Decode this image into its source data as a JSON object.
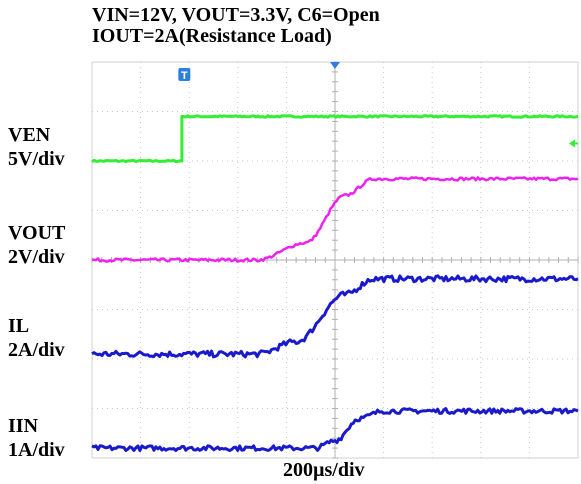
{
  "header": {
    "line1": "VIN=12V,   VOUT=3.3V,  C6=Open",
    "line2": "IOUT=2A(Resistance Load)"
  },
  "channels": [
    {
      "name": "VEN",
      "scale": "5V/div"
    },
    {
      "name": "VOUT",
      "scale": "2V/div"
    },
    {
      "name": "IL",
      "scale": "2A/div"
    },
    {
      "name": "IIN",
      "scale": "1A/div"
    }
  ],
  "xaxis": {
    "scale": "200µs/div"
  },
  "trigger_marker": "T",
  "colors": {
    "grid": "#c8c8c8",
    "frame": "#d0d0d0",
    "ven": "#33ee33",
    "vout": "#ee22ee",
    "il": "#1a1acc",
    "iin": "#1a1acc",
    "trigger": "#2a7fe0"
  },
  "chart_data": {
    "type": "line",
    "x_unit": "div",
    "xlim": [
      0,
      10
    ],
    "ylim": [
      0,
      8
    ],
    "grid": true,
    "series": [
      {
        "name": "VEN",
        "x": [
          0,
          1.85,
          1.85,
          10
        ],
        "y": [
          6.0,
          6.0,
          6.9,
          6.9
        ]
      },
      {
        "name": "VOUT",
        "x": [
          0,
          3.4,
          4.4,
          5.2,
          5.8,
          10
        ],
        "y": [
          4.0,
          4.0,
          4.35,
          5.3,
          5.64,
          5.64
        ]
      },
      {
        "name": "IL",
        "x": [
          0,
          3.4,
          4.2,
          5.2,
          5.8,
          10
        ],
        "y": [
          2.1,
          2.1,
          2.35,
          3.3,
          3.62,
          3.62
        ]
      },
      {
        "name": "IIN",
        "x": [
          0,
          4.6,
          5.0,
          5.5,
          6.0,
          10
        ],
        "y": [
          0.2,
          0.2,
          0.35,
          0.8,
          0.95,
          0.95
        ]
      }
    ]
  }
}
